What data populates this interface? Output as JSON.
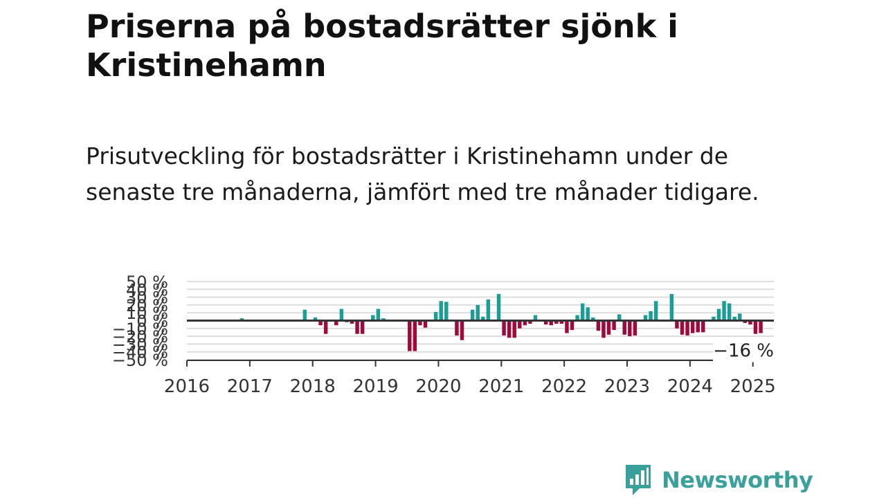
{
  "header": {
    "title": "Priserna på bostadsrätter sjönk i Kristinehamn",
    "subtitle": "Prisutveckling för bostadsrätter i Kristinehamn under de senaste tre månaderna, jämfört med tre månader tidigare."
  },
  "brand": {
    "name": "Newsworthy",
    "logo_icon": "bar-chart-speech-bubble-icon"
  },
  "colors": {
    "positive": "#1a9e96",
    "negative": "#9e0a3c",
    "grid": "#dddddd",
    "zero_line": "#333333"
  },
  "chart_data": {
    "type": "bar",
    "title": "",
    "xlabel": "",
    "ylabel": "",
    "ylim": [
      -50,
      50
    ],
    "y_ticks": [
      50,
      40,
      30,
      20,
      10,
      0,
      -10,
      -20,
      -30,
      -40,
      -50
    ],
    "y_tick_labels": [
      "50 %",
      "40 %",
      "30 %",
      "20 %",
      "10 %",
      "0 %",
      "−10 %",
      "−20 %",
      "−30 %",
      "−40 %",
      "−50 %"
    ],
    "x_range": [
      "2016-01",
      "2025-05"
    ],
    "x_ticks": [
      "2016",
      "2017",
      "2018",
      "2019",
      "2020",
      "2021",
      "2022",
      "2023",
      "2024",
      "2025"
    ],
    "grid": true,
    "last_value_label": "−16 %",
    "series": [
      {
        "values": [
          {
            "x": "2016-11",
            "y": 3
          },
          {
            "x": "2017-11",
            "y": 14
          },
          {
            "x": "2018-01",
            "y": 4
          },
          {
            "x": "2018-02",
            "y": -6
          },
          {
            "x": "2018-03",
            "y": -17
          },
          {
            "x": "2018-05",
            "y": -6
          },
          {
            "x": "2018-06",
            "y": 15
          },
          {
            "x": "2018-07",
            "y": -2
          },
          {
            "x": "2018-08",
            "y": -4
          },
          {
            "x": "2018-09",
            "y": -17
          },
          {
            "x": "2018-10",
            "y": -17
          },
          {
            "x": "2018-12",
            "y": 7
          },
          {
            "x": "2019-01",
            "y": 15
          },
          {
            "x": "2019-02",
            "y": 3
          },
          {
            "x": "2019-03",
            "y": -1
          },
          {
            "x": "2019-07",
            "y": -39
          },
          {
            "x": "2019-08",
            "y": -39
          },
          {
            "x": "2019-09",
            "y": -6
          },
          {
            "x": "2019-10",
            "y": -9
          },
          {
            "x": "2019-12",
            "y": 11
          },
          {
            "x": "2020-01",
            "y": 25
          },
          {
            "x": "2020-02",
            "y": 24
          },
          {
            "x": "2020-04",
            "y": -19
          },
          {
            "x": "2020-05",
            "y": -25
          },
          {
            "x": "2020-07",
            "y": 14
          },
          {
            "x": "2020-08",
            "y": 20
          },
          {
            "x": "2020-09",
            "y": 5
          },
          {
            "x": "2020-10",
            "y": 27
          },
          {
            "x": "2020-12",
            "y": 34
          },
          {
            "x": "2021-01",
            "y": -19
          },
          {
            "x": "2021-02",
            "y": -22
          },
          {
            "x": "2021-03",
            "y": -22
          },
          {
            "x": "2021-04",
            "y": -10
          },
          {
            "x": "2021-05",
            "y": -6
          },
          {
            "x": "2021-06",
            "y": -4
          },
          {
            "x": "2021-07",
            "y": 7
          },
          {
            "x": "2021-09",
            "y": -5
          },
          {
            "x": "2021-10",
            "y": -6
          },
          {
            "x": "2021-11",
            "y": -4
          },
          {
            "x": "2021-12",
            "y": -4
          },
          {
            "x": "2022-01",
            "y": -16
          },
          {
            "x": "2022-02",
            "y": -12
          },
          {
            "x": "2022-03",
            "y": 7
          },
          {
            "x": "2022-04",
            "y": 22
          },
          {
            "x": "2022-05",
            "y": 17
          },
          {
            "x": "2022-06",
            "y": 4
          },
          {
            "x": "2022-07",
            "y": -13
          },
          {
            "x": "2022-08",
            "y": -22
          },
          {
            "x": "2022-09",
            "y": -18
          },
          {
            "x": "2022-10",
            "y": -12
          },
          {
            "x": "2022-11",
            "y": 8
          },
          {
            "x": "2022-12",
            "y": -18
          },
          {
            "x": "2023-01",
            "y": -20
          },
          {
            "x": "2023-02",
            "y": -19
          },
          {
            "x": "2023-04",
            "y": 7
          },
          {
            "x": "2023-05",
            "y": 12
          },
          {
            "x": "2023-06",
            "y": 25
          },
          {
            "x": "2023-09",
            "y": 34
          },
          {
            "x": "2023-10",
            "y": -10
          },
          {
            "x": "2023-11",
            "y": -18
          },
          {
            "x": "2023-12",
            "y": -19
          },
          {
            "x": "2024-01",
            "y": -16
          },
          {
            "x": "2024-02",
            "y": -15
          },
          {
            "x": "2024-03",
            "y": -15
          },
          {
            "x": "2024-05",
            "y": 5
          },
          {
            "x": "2024-06",
            "y": 15
          },
          {
            "x": "2024-07",
            "y": 25
          },
          {
            "x": "2024-08",
            "y": 22
          },
          {
            "x": "2024-09",
            "y": 5
          },
          {
            "x": "2024-10",
            "y": 9
          },
          {
            "x": "2024-11",
            "y": -3
          },
          {
            "x": "2024-12",
            "y": -5
          },
          {
            "x": "2025-01",
            "y": -17
          },
          {
            "x": "2025-02",
            "y": -16
          }
        ]
      }
    ]
  }
}
